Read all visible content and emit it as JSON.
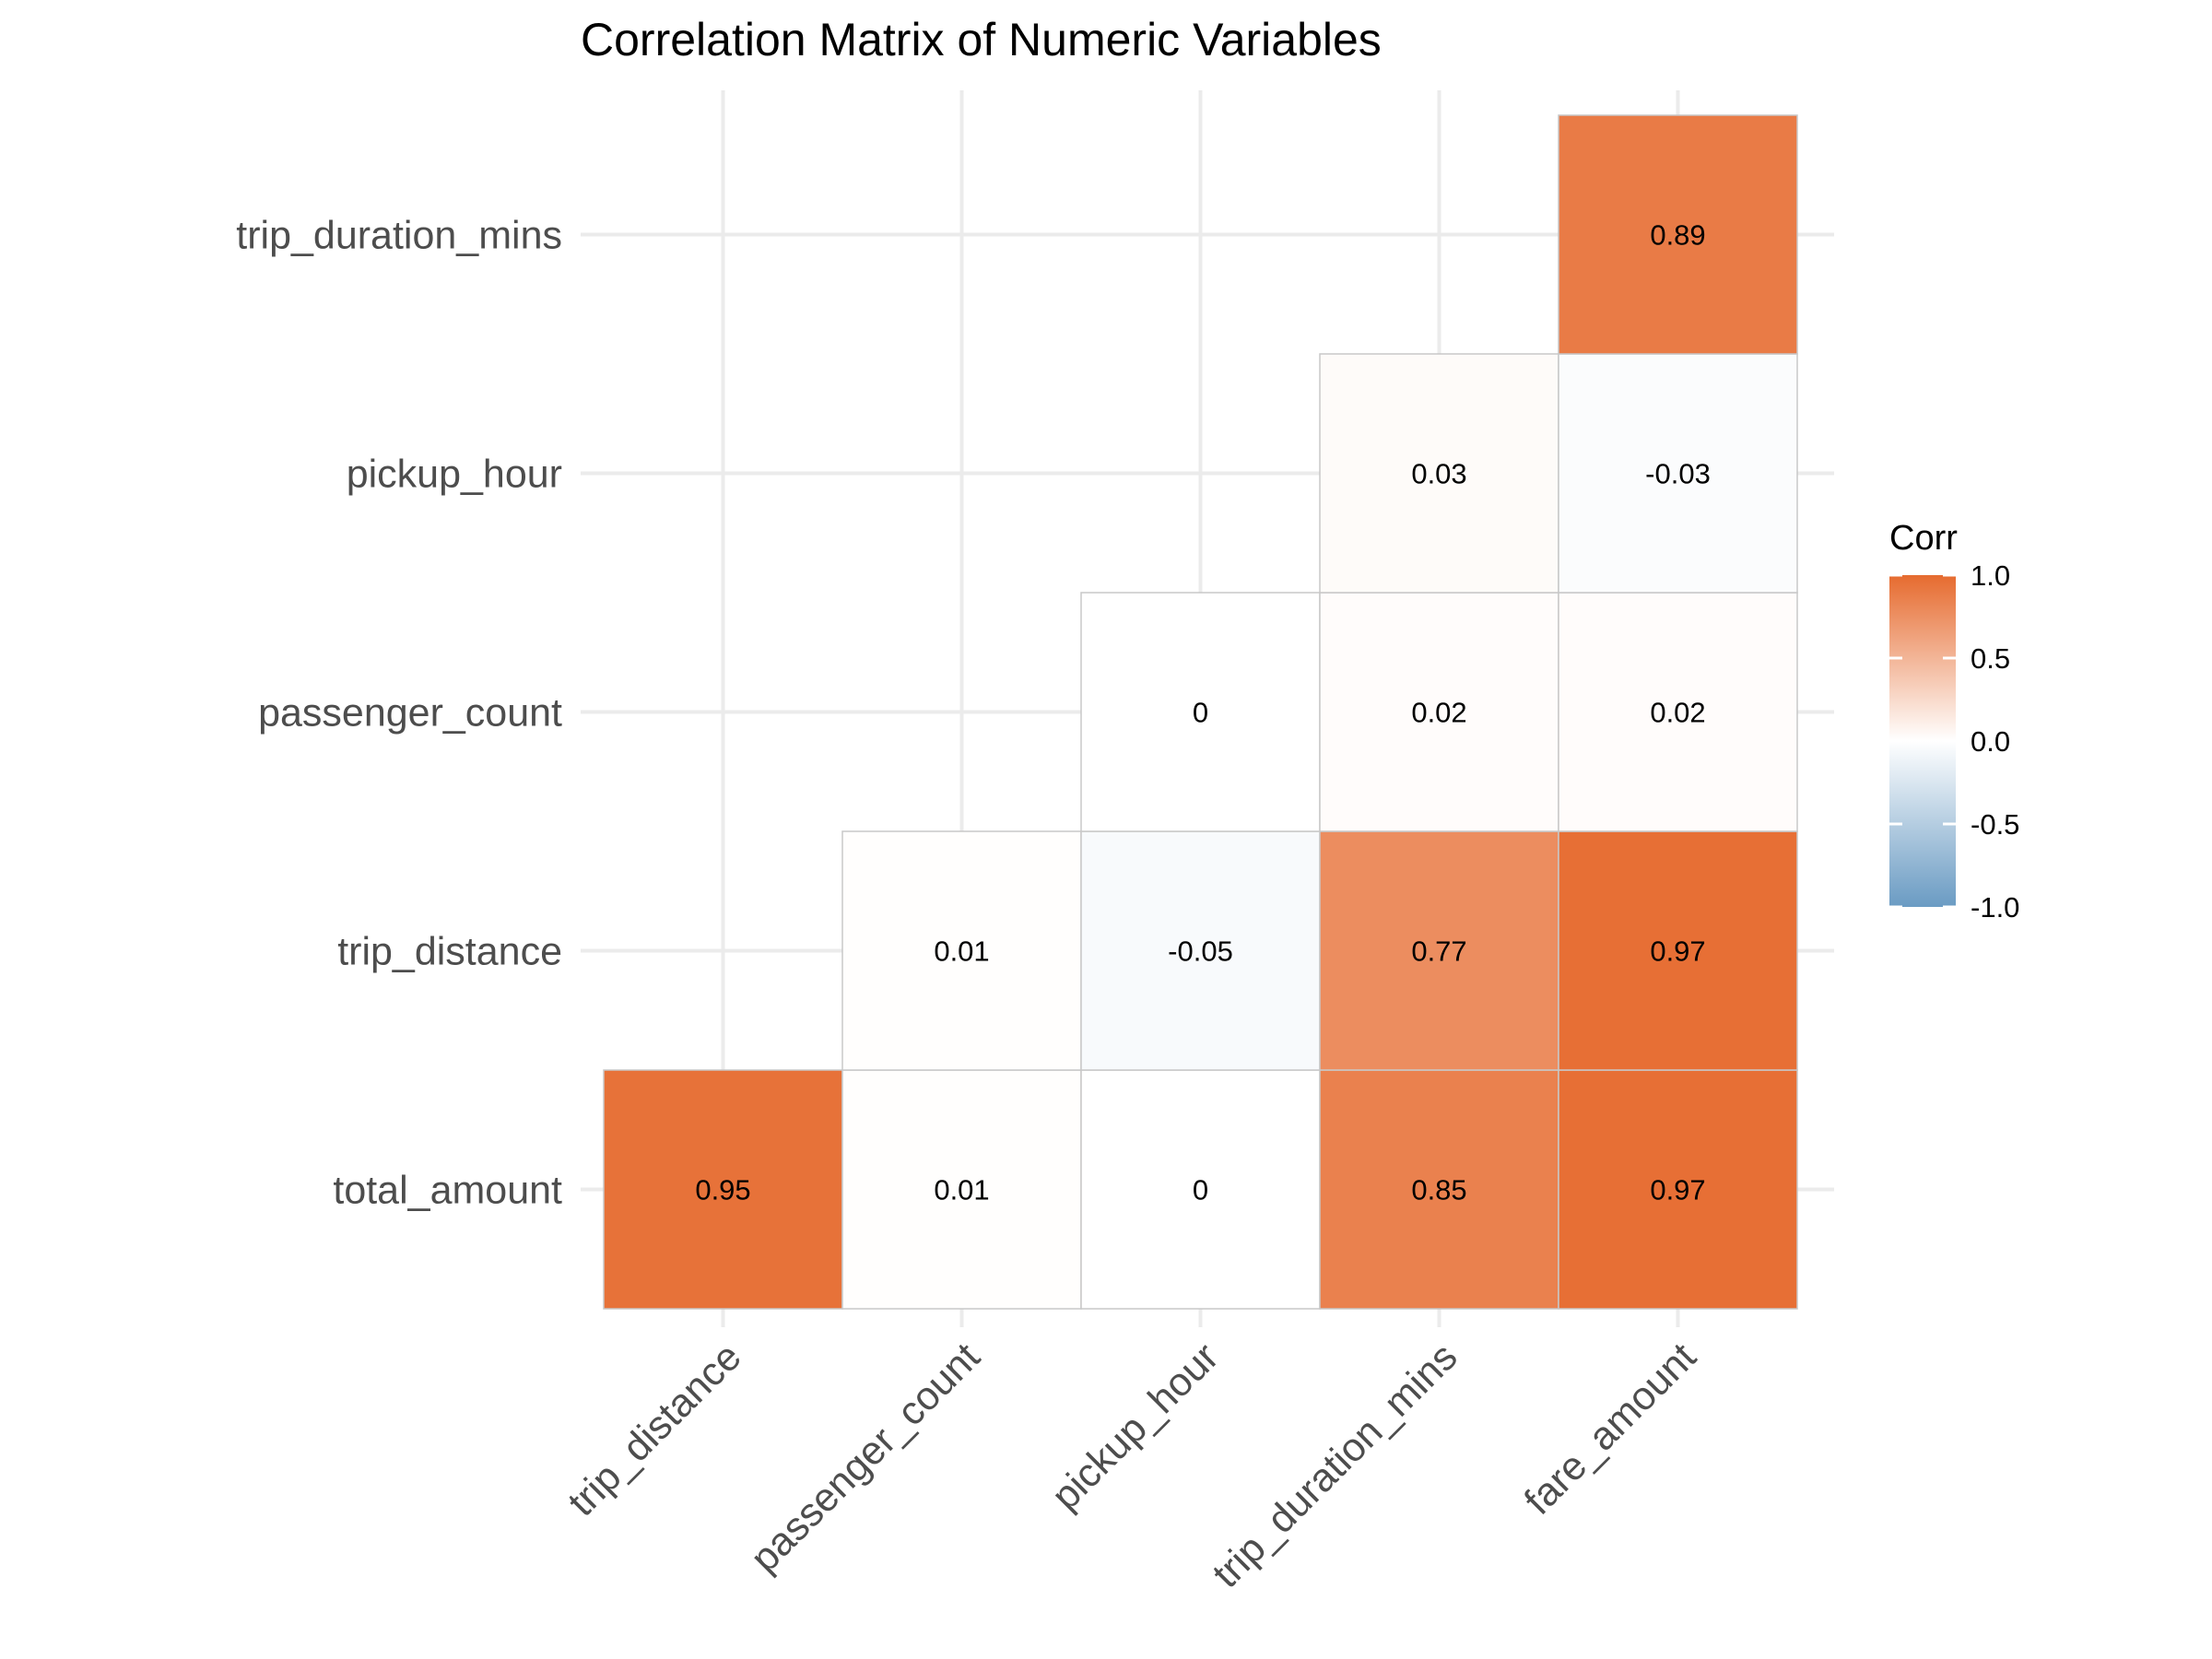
{
  "chart_data": {
    "type": "heatmap",
    "title": "Correlation Matrix of Numeric Variables",
    "x_categories": [
      "trip_distance",
      "passenger_count",
      "pickup_hour",
      "trip_duration_mins",
      "fare_amount"
    ],
    "y_categories": [
      "total_amount",
      "trip_distance",
      "passenger_count",
      "pickup_hour",
      "trip_duration_mins"
    ],
    "cells": [
      {
        "x": "trip_distance",
        "y": "total_amount",
        "value": 0.95,
        "label": "0.95"
      },
      {
        "x": "passenger_count",
        "y": "total_amount",
        "value": 0.01,
        "label": "0.01"
      },
      {
        "x": "pickup_hour",
        "y": "total_amount",
        "value": 0,
        "label": "0"
      },
      {
        "x": "trip_duration_mins",
        "y": "total_amount",
        "value": 0.85,
        "label": "0.85"
      },
      {
        "x": "fare_amount",
        "y": "total_amount",
        "value": 0.97,
        "label": "0.97"
      },
      {
        "x": "passenger_count",
        "y": "trip_distance",
        "value": 0.01,
        "label": "0.01"
      },
      {
        "x": "pickup_hour",
        "y": "trip_distance",
        "value": -0.05,
        "label": "-0.05"
      },
      {
        "x": "trip_duration_mins",
        "y": "trip_distance",
        "value": 0.77,
        "label": "0.77"
      },
      {
        "x": "fare_amount",
        "y": "trip_distance",
        "value": 0.97,
        "label": "0.97"
      },
      {
        "x": "pickup_hour",
        "y": "passenger_count",
        "value": 0,
        "label": "0"
      },
      {
        "x": "trip_duration_mins",
        "y": "passenger_count",
        "value": 0.02,
        "label": "0.02"
      },
      {
        "x": "fare_amount",
        "y": "passenger_count",
        "value": 0.02,
        "label": "0.02"
      },
      {
        "x": "trip_duration_mins",
        "y": "pickup_hour",
        "value": 0.03,
        "label": "0.03"
      },
      {
        "x": "fare_amount",
        "y": "pickup_hour",
        "value": -0.03,
        "label": "-0.03"
      },
      {
        "x": "fare_amount",
        "y": "trip_duration_mins",
        "value": 0.89,
        "label": "0.89"
      }
    ],
    "legend": {
      "title": "Corr",
      "placement": "right",
      "range": [
        -1,
        1
      ],
      "ticks": [
        "1.0",
        "0.5",
        "0.0",
        "-0.5",
        "-1.0"
      ],
      "colors": {
        "high": "#E66B2F",
        "mid": "#FFFFFF",
        "low": "#6A9BC3"
      }
    },
    "grid": true
  }
}
